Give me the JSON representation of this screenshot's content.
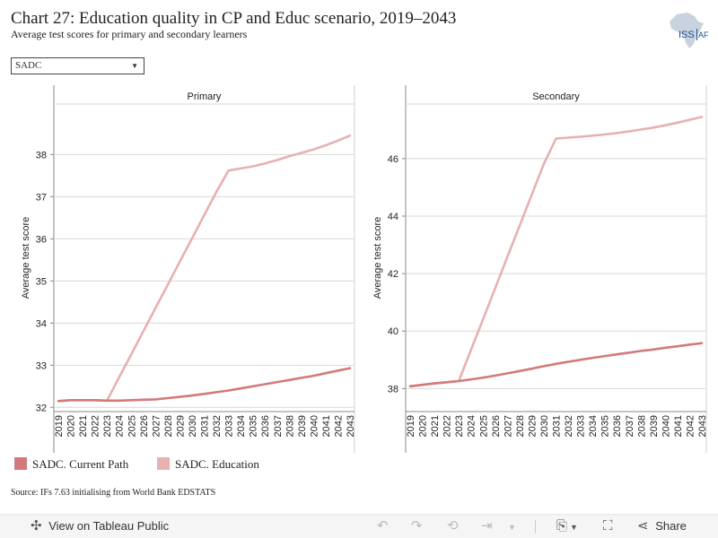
{
  "header": {
    "title": "Chart 27: Education quality in CP and Educ scenario, 2019–2043",
    "subtitle": "Average test scores for primary and secondary learners",
    "logo_text": "ISS",
    "logo_suffix": "AF"
  },
  "filter": {
    "selected": "SADC"
  },
  "colors": {
    "current_path": "#d27a7a",
    "education": "#e8b0b1",
    "grid": "#d8d8d8",
    "axis": "#888888"
  },
  "chart_data": [
    {
      "type": "line",
      "title": "Primary",
      "ylabel": "Average test score",
      "ylim": [
        31.9,
        39.2
      ],
      "yticks": [
        "32",
        "33",
        "34",
        "35",
        "36",
        "37",
        "38"
      ],
      "categories": [
        "2019",
        "2020",
        "2021",
        "2022",
        "2023",
        "2024",
        "2025",
        "2026",
        "2027",
        "2028",
        "2029",
        "2030",
        "2031",
        "2032",
        "2033",
        "2034",
        "2035",
        "2036",
        "2037",
        "2038",
        "2039",
        "2040",
        "2041",
        "2042",
        "2043"
      ],
      "series": [
        {
          "name": "SADC. Current Path",
          "values": [
            32.15,
            32.17,
            32.17,
            32.17,
            32.16,
            32.16,
            32.17,
            32.18,
            32.19,
            32.22,
            32.25,
            32.28,
            32.32,
            32.36,
            32.4,
            32.45,
            32.5,
            32.55,
            32.6,
            32.65,
            32.7,
            32.75,
            32.81,
            32.87,
            32.93
          ]
        },
        {
          "name": "SADC. Education",
          "values": [
            32.15,
            32.17,
            32.17,
            32.17,
            32.16,
            32.71,
            33.26,
            33.81,
            34.36,
            34.91,
            35.46,
            36.01,
            36.56,
            37.11,
            37.62,
            37.67,
            37.72,
            37.79,
            37.87,
            37.96,
            38.04,
            38.12,
            38.22,
            38.33,
            38.45
          ]
        }
      ]
    },
    {
      "type": "line",
      "title": "Secondary",
      "ylabel": "Average test score",
      "ylim": [
        37.2,
        47.9
      ],
      "yticks": [
        "38",
        "40",
        "42",
        "44",
        "46"
      ],
      "categories": [
        "2019",
        "2020",
        "2021",
        "2022",
        "2023",
        "2024",
        "2025",
        "2026",
        "2027",
        "2028",
        "2029",
        "2030",
        "2031",
        "2032",
        "2033",
        "2034",
        "2035",
        "2036",
        "2037",
        "2038",
        "2039",
        "2040",
        "2041",
        "2042",
        "2043"
      ],
      "series": [
        {
          "name": "SADC. Current Path",
          "values": [
            38.08,
            38.13,
            38.18,
            38.22,
            38.26,
            38.32,
            38.38,
            38.45,
            38.53,
            38.61,
            38.69,
            38.78,
            38.86,
            38.93,
            39.0,
            39.07,
            39.13,
            39.19,
            39.25,
            39.31,
            39.36,
            39.42,
            39.47,
            39.53,
            39.58
          ]
        },
        {
          "name": "SADC. Education",
          "values": [
            38.08,
            38.13,
            38.18,
            38.22,
            38.26,
            39.34,
            40.42,
            41.5,
            42.58,
            43.66,
            44.74,
            45.82,
            46.7,
            46.73,
            46.76,
            46.8,
            46.84,
            46.89,
            46.95,
            47.01,
            47.08,
            47.16,
            47.25,
            47.35,
            47.45
          ]
        }
      ]
    }
  ],
  "legend": [
    {
      "label": "SADC. Current Path",
      "color": "#d27a7a"
    },
    {
      "label": "SADC. Education",
      "color": "#e8b0b1"
    }
  ],
  "source": "Source: IFs 7.63 initialising from World Bank EDSTATS",
  "toolbar": {
    "view_label": "View on Tableau Public",
    "share_label": "Share"
  }
}
